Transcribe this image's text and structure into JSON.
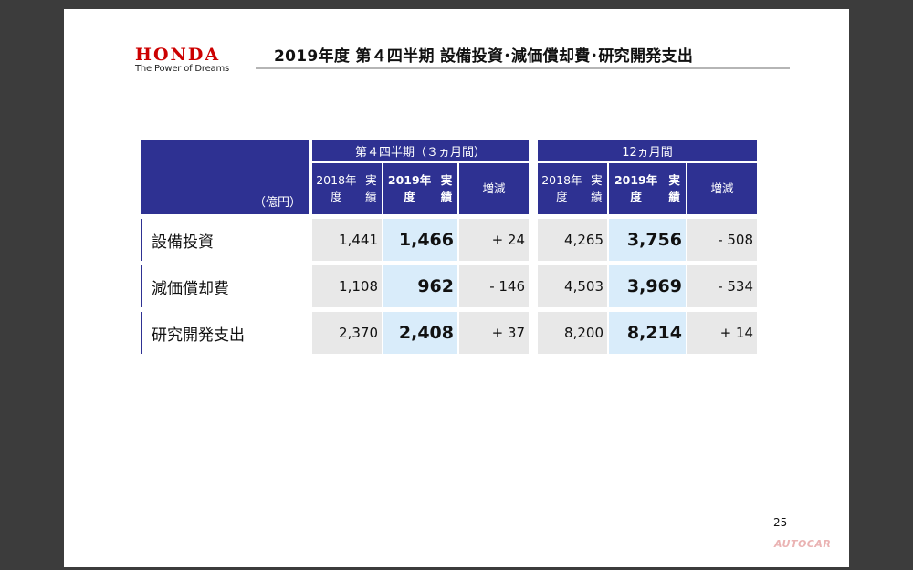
{
  "brand": {
    "name": "HONDA",
    "tagline": "The Power of Dreams"
  },
  "title": "2019年度 第４四半期 設備投資･減価償却費･研究開発支出",
  "table": {
    "unit": "（億円）",
    "groups": [
      {
        "label": "第４四半期（３ヵ月間）",
        "cols": [
          "2018年度 実績",
          "2019年度 実績",
          "増減"
        ]
      },
      {
        "label": "12ヵ月間",
        "cols": [
          "2018年度 実績",
          "2019年度 実績",
          "増減"
        ]
      }
    ],
    "rows": [
      {
        "label": "設備投資",
        "q4": [
          "1,441",
          "1,466",
          "+ 24"
        ],
        "fy": [
          "4,265",
          "3,756",
          "- 508"
        ]
      },
      {
        "label": "減価償却費",
        "q4": [
          "1,108",
          "962",
          "- 146"
        ],
        "fy": [
          "4,503",
          "3,969",
          "- 534"
        ]
      },
      {
        "label": "研究開発支出",
        "q4": [
          "2,370",
          "2,408",
          "+ 37"
        ],
        "fy": [
          "8,200",
          "8,214",
          "+ 14"
        ]
      }
    ]
  },
  "page_number": "25",
  "watermark": "AUTOCAR"
}
